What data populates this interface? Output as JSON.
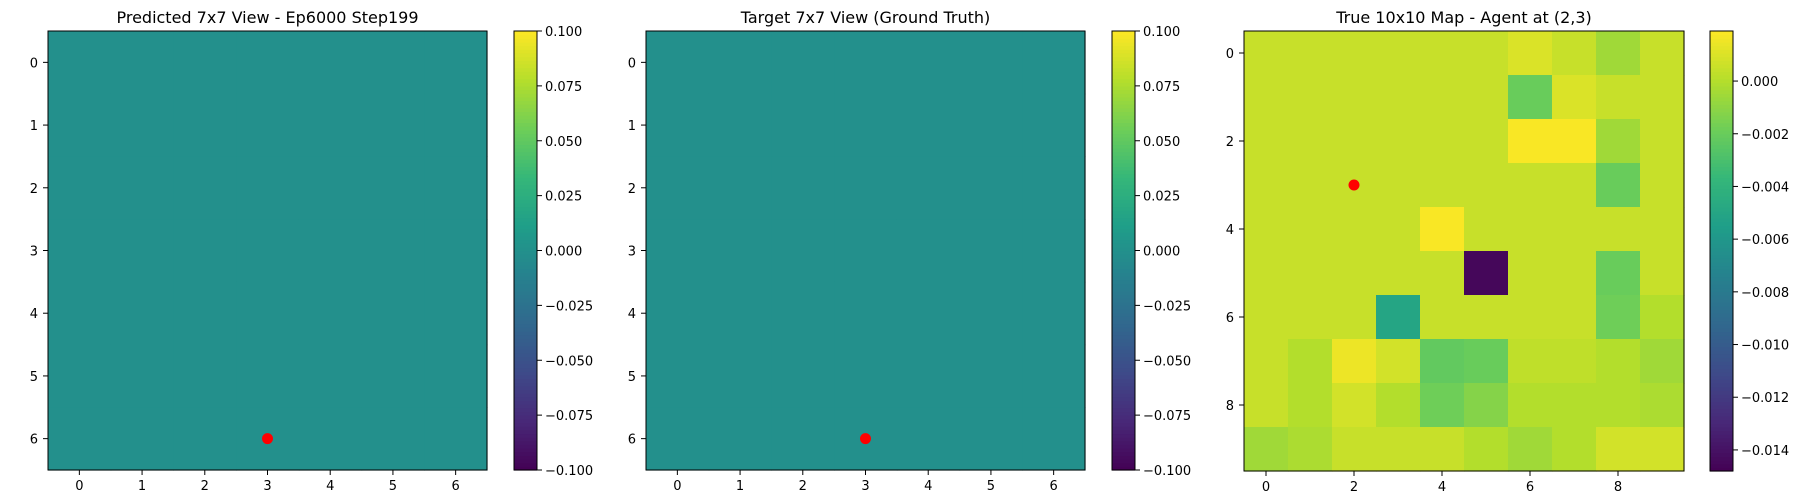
{
  "chart_data": [
    {
      "type": "heatmap",
      "title": "Predicted 7x7 View - Ep6000 Step199",
      "rows": 7,
      "cols": 7,
      "xticks": [
        0,
        1,
        2,
        3,
        4,
        5,
        6
      ],
      "yticks": [
        0,
        1,
        2,
        3,
        4,
        5,
        6
      ],
      "values": [
        [
          0,
          0,
          0,
          0,
          0,
          0,
          0
        ],
        [
          0,
          0,
          0,
          0,
          0,
          0,
          0
        ],
        [
          0,
          0,
          0,
          0,
          0,
          0,
          0
        ],
        [
          0,
          0,
          0,
          0,
          0,
          0,
          0
        ],
        [
          0,
          0,
          0,
          0,
          0,
          0,
          0
        ],
        [
          0,
          0,
          0,
          0,
          0,
          0,
          0
        ],
        [
          0,
          0,
          0,
          0,
          0,
          0,
          0
        ]
      ],
      "vmin": -0.1,
      "vmax": 0.1,
      "colormap": "viridis",
      "colorbar_ticks": [
        -0.1,
        -0.075,
        -0.05,
        -0.025,
        0.0,
        0.025,
        0.05,
        0.075,
        0.1
      ],
      "colorbar_tick_labels": [
        "−0.100",
        "−0.075",
        "−0.050",
        "−0.025",
        "0.000",
        "0.025",
        "0.050",
        "0.075",
        "0.100"
      ],
      "marker": {
        "x": 3,
        "y": 6,
        "color": "#ff0000"
      }
    },
    {
      "type": "heatmap",
      "title": "Target 7x7 View (Ground Truth)",
      "rows": 7,
      "cols": 7,
      "xticks": [
        0,
        1,
        2,
        3,
        4,
        5,
        6
      ],
      "yticks": [
        0,
        1,
        2,
        3,
        4,
        5,
        6
      ],
      "values": [
        [
          0,
          0,
          0,
          0,
          0,
          0,
          0
        ],
        [
          0,
          0,
          0,
          0,
          0,
          0,
          0
        ],
        [
          0,
          0,
          0,
          0,
          0,
          0,
          0
        ],
        [
          0,
          0,
          0,
          0,
          0,
          0,
          0
        ],
        [
          0,
          0,
          0,
          0,
          0,
          0,
          0
        ],
        [
          0,
          0,
          0,
          0,
          0,
          0,
          0
        ],
        [
          0,
          0,
          0,
          0,
          0,
          0,
          0
        ]
      ],
      "vmin": -0.1,
      "vmax": 0.1,
      "colormap": "viridis",
      "colorbar_ticks": [
        -0.1,
        -0.075,
        -0.05,
        -0.025,
        0.0,
        0.025,
        0.05,
        0.075,
        0.1
      ],
      "colorbar_tick_labels": [
        "−0.100",
        "−0.075",
        "−0.050",
        "−0.025",
        "0.000",
        "0.025",
        "0.050",
        "0.075",
        "0.100"
      ],
      "marker": {
        "x": 3,
        "y": 6,
        "color": "#ff0000"
      }
    },
    {
      "type": "heatmap",
      "title": "True 10x10 Map - Agent at (2,3)",
      "rows": 10,
      "cols": 10,
      "xticks": [
        0,
        2,
        4,
        6,
        8
      ],
      "yticks": [
        0,
        2,
        4,
        6,
        8
      ],
      "values": [
        [
          0.0005,
          0.0005,
          0.0005,
          0.0005,
          0.0005,
          0.0005,
          0.001,
          0.0005,
          -0.0005,
          0.0005
        ],
        [
          0.0005,
          0.0005,
          0.0005,
          0.0005,
          0.0005,
          0.0005,
          -0.002,
          0.001,
          0.0005,
          0.0005
        ],
        [
          0.0005,
          0.0005,
          0.0005,
          0.0005,
          0.0005,
          0.0005,
          0.0018,
          0.0018,
          -0.0005,
          0.0005
        ],
        [
          0.0005,
          0.0005,
          0.0005,
          0.0005,
          0.0005,
          0.0005,
          0.0005,
          0.0005,
          -0.002,
          0.0005
        ],
        [
          0.0005,
          0.0005,
          0.0005,
          0.0005,
          0.0018,
          0.0005,
          0.0005,
          0.0005,
          0.0005,
          0.0005
        ],
        [
          0.0005,
          0.0005,
          0.0005,
          0.0005,
          0.0005,
          -0.0145,
          0.0005,
          0.0005,
          -0.002,
          0.0005
        ],
        [
          0.0005,
          0.0005,
          0.0005,
          -0.005,
          0.0005,
          0.0005,
          0.0005,
          0.0005,
          -0.0018,
          0.0
        ],
        [
          0.0005,
          0.0,
          0.0015,
          0.0008,
          -0.0022,
          -0.002,
          0.0003,
          0.0003,
          0.0,
          -0.0005
        ],
        [
          0.0005,
          0.0,
          0.0008,
          0.0,
          -0.0018,
          -0.0012,
          0.0,
          0.0,
          0.0,
          -0.0002
        ],
        [
          -0.0005,
          -0.0002,
          0.0005,
          0.0005,
          0.0005,
          0.0,
          -0.0005,
          0.0,
          0.0008,
          0.0008
        ]
      ],
      "vmin": -0.0148,
      "vmax": 0.0019,
      "colormap": "viridis",
      "colorbar_ticks": [
        -0.014,
        -0.012,
        -0.01,
        -0.008,
        -0.006,
        -0.004,
        -0.002,
        0.0
      ],
      "colorbar_tick_labels": [
        "−0.014",
        "−0.012",
        "−0.010",
        "−0.008",
        "−0.006",
        "−0.004",
        "−0.002",
        "0.000"
      ],
      "marker": {
        "x": 2,
        "y": 3,
        "color": "#ff0000"
      }
    }
  ]
}
